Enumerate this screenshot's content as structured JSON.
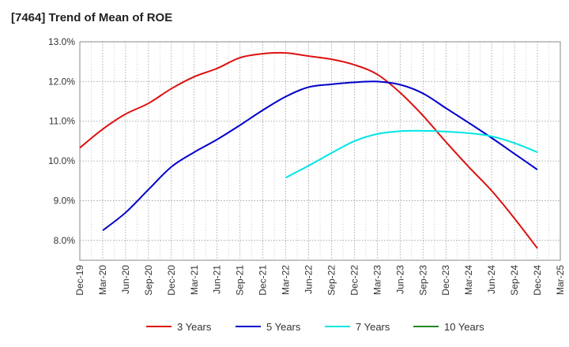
{
  "chart_data": {
    "type": "line",
    "title": "[7464]  Trend of Mean of ROE",
    "xlabel": "",
    "ylabel": "",
    "ylim": [
      7.5,
      13.0
    ],
    "y_ticks": [
      8.0,
      9.0,
      10.0,
      11.0,
      12.0,
      13.0
    ],
    "y_tick_labels": [
      "8.0%",
      "9.0%",
      "10.0%",
      "11.0%",
      "12.0%",
      "13.0%"
    ],
    "x_ticks": [
      "Dec-19",
      "Mar-20",
      "Jun-20",
      "Sep-20",
      "Dec-20",
      "Mar-21",
      "Jun-21",
      "Sep-21",
      "Dec-21",
      "Mar-22",
      "Jun-22",
      "Sep-22",
      "Dec-22",
      "Mar-23",
      "Jun-23",
      "Sep-23",
      "Dec-23",
      "Mar-24",
      "Jun-24",
      "Sep-24",
      "Dec-24",
      "Mar-25"
    ],
    "grid": true,
    "legend_position": "bottom",
    "series": [
      {
        "name": "3 Years",
        "color": "#dd1111",
        "x": [
          "Dec-19",
          "Mar-20",
          "Jun-20",
          "Sep-20",
          "Dec-20",
          "Mar-21",
          "Jun-21",
          "Sep-21",
          "Dec-21",
          "Mar-22",
          "Jun-22",
          "Sep-22",
          "Dec-22",
          "Mar-23",
          "Jun-23",
          "Sep-23",
          "Dec-23",
          "Mar-24",
          "Jun-24",
          "Sep-24",
          "Dec-24"
        ],
        "values": [
          10.33,
          10.8,
          11.18,
          11.45,
          11.82,
          12.12,
          12.33,
          12.6,
          12.7,
          12.72,
          12.64,
          12.56,
          12.42,
          12.18,
          11.72,
          11.14,
          10.48,
          9.85,
          9.25,
          8.55,
          7.8
        ]
      },
      {
        "name": "5 Years",
        "color": "#0000cc",
        "x": [
          "Mar-20",
          "Jun-20",
          "Sep-20",
          "Dec-20",
          "Mar-21",
          "Jun-21",
          "Sep-21",
          "Dec-21",
          "Mar-22",
          "Jun-22",
          "Sep-22",
          "Dec-22",
          "Mar-23",
          "Jun-23",
          "Sep-23",
          "Dec-23",
          "Mar-24",
          "Jun-24",
          "Sep-24",
          "Dec-24"
        ],
        "values": [
          8.25,
          8.7,
          9.28,
          9.85,
          10.22,
          10.54,
          10.9,
          11.28,
          11.62,
          11.86,
          11.93,
          11.98,
          12.0,
          11.92,
          11.7,
          11.33,
          10.96,
          10.58,
          10.18,
          9.78
        ]
      },
      {
        "name": "7 Years",
        "color": "#00e5e5",
        "x": [
          "Mar-22",
          "Jun-22",
          "Sep-22",
          "Dec-22",
          "Mar-23",
          "Jun-23",
          "Sep-23",
          "Dec-23",
          "Mar-24",
          "Jun-24",
          "Sep-24",
          "Dec-24"
        ],
        "values": [
          9.58,
          9.88,
          10.2,
          10.5,
          10.68,
          10.75,
          10.76,
          10.74,
          10.7,
          10.62,
          10.45,
          10.22
        ]
      },
      {
        "name": "10 Years",
        "color": "#228822",
        "x": [],
        "values": []
      }
    ]
  }
}
